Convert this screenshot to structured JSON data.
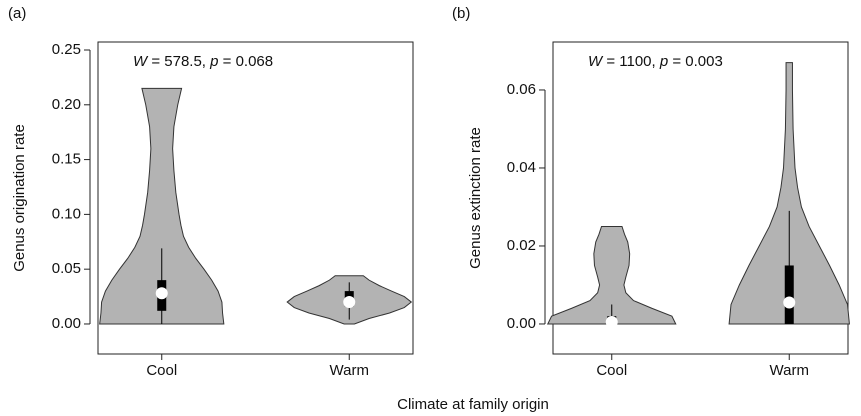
{
  "figure": {
    "xlabel": "Climate at family origin"
  },
  "chart_data": [
    {
      "type": "violin",
      "panel_label": "(a)",
      "ylabel": "Genus origination rate",
      "annotation": [
        "W",
        " = 578.5, ",
        "p",
        " = 0.068"
      ],
      "categories": [
        "Cool",
        "Warm"
      ],
      "ylim": [
        -0.0274,
        0.2573
      ],
      "yticks": [
        {
          "value": 0,
          "label": "0.00"
        },
        0.05,
        {
          "value": 0.1,
          "label": "0.10"
        },
        0.15,
        {
          "value": 0.2,
          "label": "0.20"
        },
        0.25
      ],
      "color": "#b3b3b3",
      "violins": [
        {
          "y": [
            0,
            0.01,
            0.02,
            0.03,
            0.04,
            0.05,
            0.06,
            0.07,
            0.08,
            0.09,
            0.1,
            0.12,
            0.14,
            0.16,
            0.18,
            0.2,
            0.215
          ],
          "widths": [
            0.97,
            0.95,
            0.94,
            0.88,
            0.78,
            0.66,
            0.53,
            0.42,
            0.34,
            0.3,
            0.27,
            0.22,
            0.19,
            0.17,
            0.19,
            0.25,
            0.31
          ],
          "q1": 0.012,
          "median": 0.028,
          "q3": 0.04,
          "whisker_low": 0,
          "whisker_high": 0.069
        },
        {
          "y": [
            0,
            0.005,
            0.01,
            0.015,
            0.02,
            0.025,
            0.03,
            0.035,
            0.04,
            0.044
          ],
          "widths": [
            0.08,
            0.31,
            0.63,
            0.86,
            0.97,
            0.86,
            0.66,
            0.47,
            0.31,
            0.22
          ],
          "q1": 0.016,
          "median": 0.02,
          "q3": 0.03,
          "whisker_low": 0.004,
          "whisker_high": 0.038
        }
      ]
    },
    {
      "type": "violin",
      "panel_label": "(b)",
      "ylabel": "Genus extinction rate",
      "annotation": [
        "W",
        " = 1100, ",
        "p",
        " = 0.003"
      ],
      "categories": [
        "Cool",
        "Warm"
      ],
      "ylim": [
        -0.0077,
        0.0723
      ],
      "yticks": [
        {
          "value": 0,
          "label": "0.00"
        },
        0.02,
        0.04,
        0.06
      ],
      "color": "#b3b3b3",
      "violins": [
        {
          "y": [
            0,
            0.002,
            0.004,
            0.006,
            0.008,
            0.01,
            0.012,
            0.015,
            0.018,
            0.021,
            0.023,
            0.025
          ],
          "widths": [
            1,
            0.94,
            0.63,
            0.34,
            0.22,
            0.19,
            0.22,
            0.27,
            0.28,
            0.25,
            0.2,
            0.16
          ],
          "q1": 0,
          "median": 0.0005,
          "q3": 0.002,
          "whisker_low": 0,
          "whisker_high": 0.005
        },
        {
          "y": [
            0,
            0.005,
            0.01,
            0.015,
            0.02,
            0.025,
            0.03,
            0.035,
            0.04,
            0.05,
            0.06,
            0.067
          ],
          "widths": [
            0.94,
            0.91,
            0.78,
            0.63,
            0.47,
            0.31,
            0.19,
            0.13,
            0.09,
            0.06,
            0.05,
            0.05
          ],
          "q1": 0,
          "median": 0.0055,
          "q3": 0.015,
          "whisker_low": 0,
          "whisker_high": 0.029
        }
      ]
    }
  ]
}
